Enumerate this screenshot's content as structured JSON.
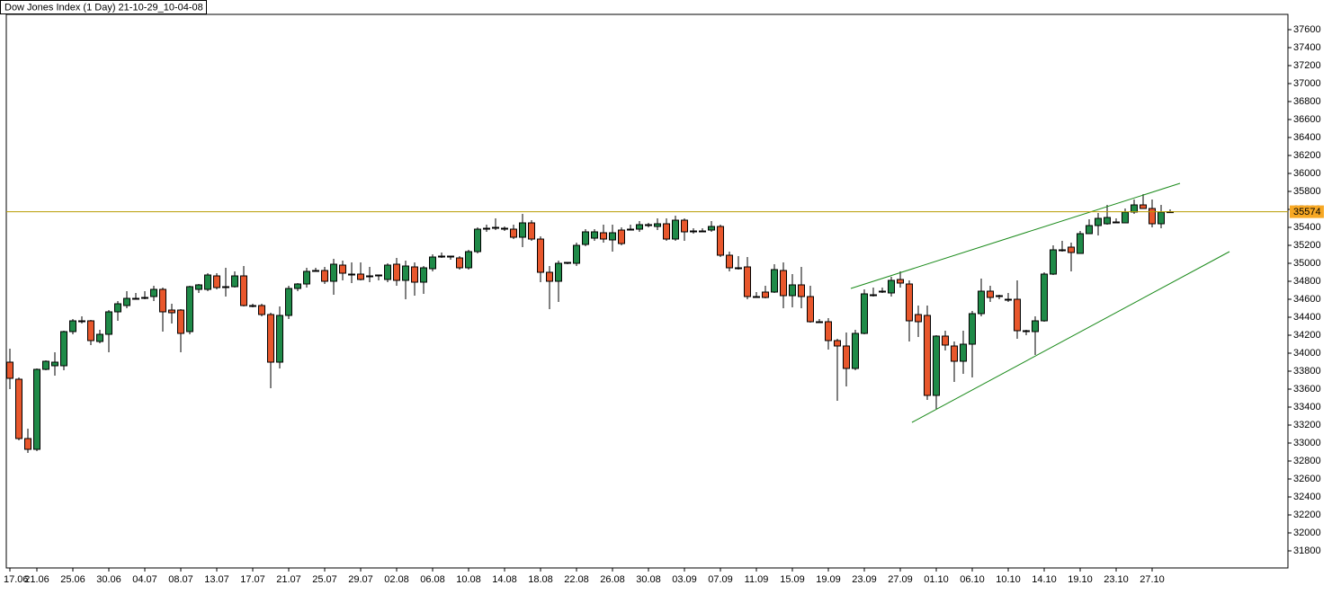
{
  "chart_data": {
    "type": "candlestick",
    "title": "Dow Jones Index (1 Day) 21-10-29_10-04-08",
    "categories": [
      "17.06",
      null,
      null,
      "21.06",
      null,
      null,
      null,
      "25.06",
      null,
      null,
      null,
      "30.06",
      null,
      null,
      null,
      "04.07",
      null,
      null,
      null,
      "08.07",
      null,
      null,
      null,
      "13.07",
      null,
      null,
      null,
      "17.07",
      null,
      null,
      null,
      "21.07",
      null,
      null,
      null,
      "25.07",
      null,
      null,
      null,
      "29.07",
      null,
      null,
      null,
      "02.08",
      null,
      null,
      null,
      "06.08",
      null,
      null,
      null,
      "10.08",
      null,
      null,
      null,
      "14.08",
      null,
      null,
      null,
      "18.08",
      null,
      null,
      null,
      "22.08",
      null,
      null,
      null,
      "26.08",
      null,
      null,
      null,
      "30.08",
      null,
      null,
      null,
      "03.09",
      null,
      null,
      null,
      "07.09",
      null,
      null,
      null,
      "11.09",
      null,
      null,
      null,
      "15.09",
      null,
      null,
      null,
      "19.09",
      null,
      null,
      null,
      "23.09",
      null,
      null,
      null,
      "27.09",
      null,
      null,
      null,
      "01.10",
      null,
      null,
      null,
      "06.10",
      null,
      null,
      null,
      "10.10",
      null,
      null,
      null,
      "14.10",
      null,
      null,
      null,
      "19.10",
      null,
      null,
      null,
      "23.10",
      null,
      null,
      null,
      "27.10",
      null,
      null
    ],
    "open": [
      33900,
      33710,
      33050,
      32930,
      33820,
      33860,
      33860,
      34240,
      34360,
      34360,
      34130,
      34210,
      34460,
      34530,
      34610,
      34620,
      34630,
      34710,
      34480,
      34480,
      34240,
      34710,
      34710,
      34860,
      34740,
      34740,
      34860,
      34530,
      34530,
      34430,
      33900,
      34420,
      34720,
      34770,
      34920,
      34920,
      34800,
      34980,
      34880,
      34880,
      34860,
      34870,
      34820,
      34990,
      34810,
      34960,
      34790,
      34940,
      35080,
      35080,
      35060,
      34950,
      35130,
      35390,
      35400,
      35390,
      35380,
      35290,
      35450,
      35270,
      34900,
      34800,
      35010,
      35000,
      35210,
      35280,
      35340,
      35260,
      35370,
      35380,
      35380,
      35430,
      35410,
      35440,
      35270,
      35480,
      35360,
      35360,
      35370,
      35410,
      35090,
      34950,
      34960,
      34630,
      34680,
      34680,
      34920,
      34640,
      34760,
      34630,
      34350,
      34350,
      34140,
      34080,
      33830,
      34220,
      34650,
      34690,
      34670,
      34820,
      34770,
      34430,
      34420,
      33530,
      34190,
      34080,
      33910,
      34100,
      34440,
      34690,
      34640,
      34600,
      34600,
      34250,
      34240,
      34360,
      34880,
      35150,
      35180,
      35110,
      35330,
      35420,
      35440,
      35460,
      35450,
      35570,
      35650,
      35610,
      35440,
      35574
    ],
    "high": [
      34050,
      33730,
      33160,
      33830,
      33920,
      34010,
      34250,
      34380,
      34410,
      34370,
      34260,
      34480,
      34580,
      34690,
      34670,
      34690,
      34750,
      34730,
      34550,
      34490,
      34750,
      34770,
      34890,
      34890,
      34950,
      34910,
      34970,
      34550,
      34550,
      34450,
      34520,
      34750,
      34780,
      34950,
      34950,
      34960,
      35050,
      35030,
      35010,
      35010,
      34960,
      34870,
      35000,
      35060,
      35030,
      35010,
      34970,
      35100,
      35120,
      35080,
      35080,
      35150,
      35400,
      35430,
      35500,
      35410,
      35430,
      35550,
      35480,
      35300,
      34970,
      35030,
      35010,
      35230,
      35380,
      35380,
      35430,
      35430,
      35400,
      35430,
      35470,
      35450,
      35500,
      35500,
      35530,
      35500,
      35390,
      35390,
      35470,
      35430,
      35130,
      35080,
      35070,
      34680,
      34750,
      34990,
      35010,
      34880,
      34960,
      34750,
      34380,
      34390,
      34160,
      34230,
      34260,
      34710,
      34730,
      34730,
      34850,
      34910,
      34810,
      34530,
      34530,
      34200,
      34250,
      34130,
      34250,
      34470,
      34830,
      34750,
      34650,
      34670,
      34810,
      34260,
      34410,
      34900,
      35200,
      35250,
      35230,
      35360,
      35490,
      35560,
      35650,
      35500,
      35610,
      35710,
      35770,
      35710,
      35650,
      35600
    ],
    "low": [
      33600,
      33030,
      32890,
      32910,
      33810,
      33750,
      33810,
      34210,
      34330,
      34090,
      34110,
      34010,
      34360,
      34500,
      34610,
      34600,
      34580,
      34240,
      34330,
      34010,
      34210,
      34670,
      34690,
      34710,
      34630,
      34730,
      34520,
      34510,
      34410,
      33610,
      33830,
      34380,
      34690,
      34730,
      34910,
      34770,
      34650,
      34810,
      34780,
      34810,
      34790,
      34810,
      34790,
      34750,
      34600,
      34640,
      34660,
      34910,
      35060,
      35040,
      34930,
      34930,
      35110,
      35350,
      35370,
      35360,
      35270,
      35180,
      35250,
      34790,
      34490,
      34570,
      34990,
      34970,
      35190,
      35250,
      35230,
      35130,
      35200,
      35370,
      35350,
      35400,
      35370,
      35250,
      35250,
      35250,
      35330,
      35350,
      35350,
      35070,
      34910,
      34930,
      34600,
      34630,
      34610,
      34670,
      34500,
      34510,
      34500,
      34340,
      34350,
      34040,
      33470,
      33630,
      33810,
      34210,
      34630,
      34670,
      34630,
      34730,
      34130,
      34180,
      33480,
      33380,
      34030,
      33680,
      33770,
      33730,
      34410,
      34570,
      34600,
      34570,
      34160,
      34200,
      33980,
      34350,
      34870,
      35130,
      34910,
      35110,
      35330,
      35310,
      35430,
      35460,
      35450,
      35550,
      35610,
      35400,
      35390,
      35570
    ],
    "close": [
      33720,
      33050,
      32930,
      33820,
      33910,
      33900,
      34240,
      34360,
      34360,
      34140,
      34210,
      34460,
      34550,
      34610,
      34610,
      34620,
      34710,
      34460,
      34450,
      34220,
      34740,
      34760,
      34870,
      34730,
      34730,
      34860,
      34530,
      34530,
      34430,
      33900,
      34420,
      34720,
      34770,
      34910,
      34920,
      34800,
      34990,
      34890,
      34880,
      34820,
      34860,
      34870,
      34980,
      34810,
      34970,
      34790,
      34950,
      35070,
      35080,
      35080,
      34950,
      35130,
      35380,
      35390,
      35400,
      35390,
      35290,
      35450,
      35270,
      34900,
      34800,
      35000,
      35010,
      35200,
      35350,
      35350,
      35270,
      35340,
      35220,
      35380,
      35430,
      35430,
      35440,
      35270,
      35480,
      35350,
      35360,
      35360,
      35410,
      35090,
      34950,
      34950,
      34630,
      34630,
      34620,
      34930,
      34640,
      34760,
      34630,
      34350,
      34350,
      34140,
      34080,
      33830,
      34220,
      34660,
      34650,
      34690,
      34810,
      34780,
      34360,
      34350,
      33530,
      34190,
      34090,
      33910,
      34100,
      34440,
      34690,
      34620,
      34640,
      34600,
      34250,
      34250,
      34360,
      34880,
      35150,
      35150,
      35120,
      35330,
      35420,
      35500,
      35510,
      35460,
      35570,
      35650,
      35610,
      35440,
      35570,
      35574
    ],
    "up_color": "#1f8a48",
    "down_color": "#e8572c",
    "ylim": [
      31610,
      37770
    ],
    "yticks": [
      31800,
      32000,
      32200,
      32400,
      32600,
      32800,
      33000,
      33200,
      33400,
      33600,
      33800,
      34000,
      34200,
      34400,
      34600,
      34800,
      35000,
      35200,
      35400,
      35600,
      35800,
      36000,
      36200,
      36400,
      36600,
      36800,
      37000,
      37200,
      37400,
      37600
    ],
    "last_price": 35574,
    "last_price_color": "#b89c00",
    "last_price_box_color": "#f7a824",
    "trend_lines": [
      {
        "x": [
          93.5,
          130.1
        ],
        "y": [
          34720,
          35890
        ]
      },
      {
        "x": [
          100.3,
          135.6
        ],
        "y": [
          33230,
          35130
        ]
      }
    ],
    "trend_color": "#1a8a1a"
  }
}
